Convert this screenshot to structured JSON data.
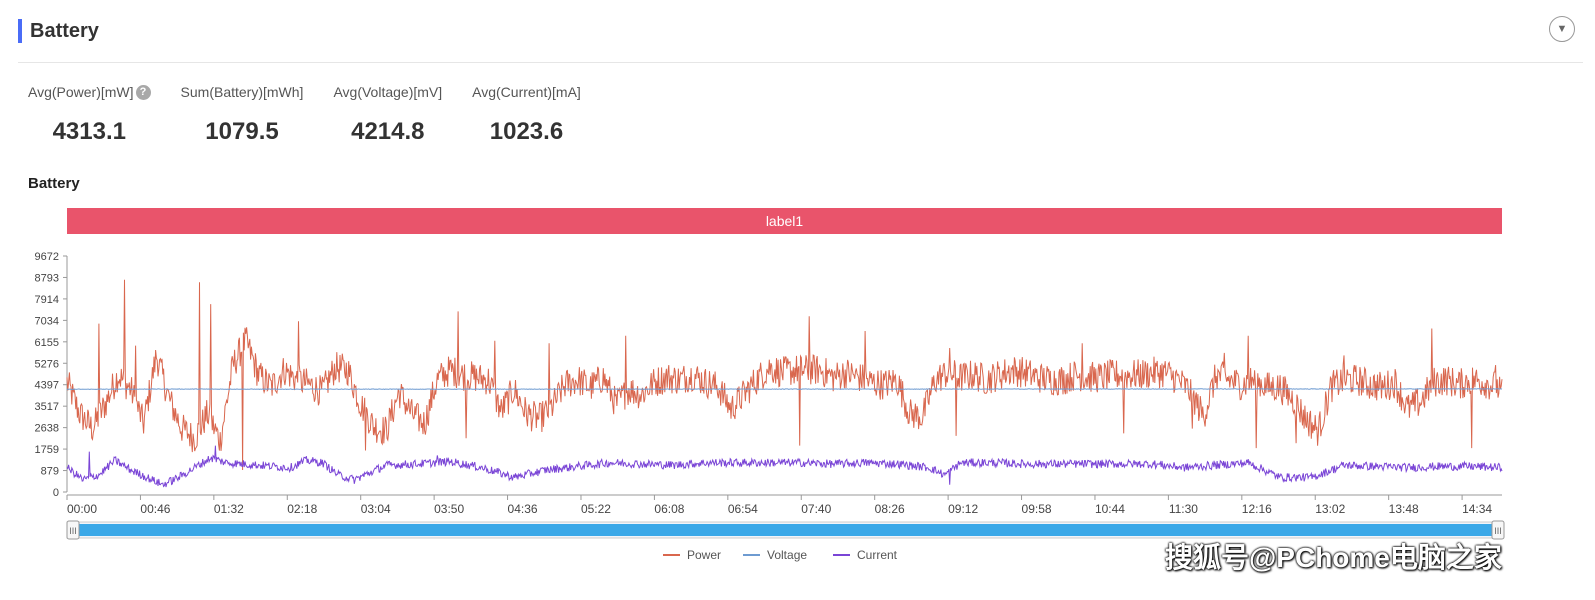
{
  "panel": {
    "title": "Battery",
    "collapse_icon": "chevron-down-icon"
  },
  "metrics": [
    {
      "label": "Avg(Power)[mW]",
      "value": "4313.1",
      "has_help": true
    },
    {
      "label": "Sum(Battery)[mWh]",
      "value": "1079.5",
      "has_help": false
    },
    {
      "label": "Avg(Voltage)[mV]",
      "value": "4214.8",
      "has_help": false
    },
    {
      "label": "Avg(Current)[mA]",
      "value": "1023.6",
      "has_help": false
    }
  ],
  "chart_data": {
    "type": "line",
    "title": "Battery",
    "band_label": "label1",
    "band_color": "#e9546b",
    "y_ticks": [
      0,
      879,
      1759,
      2638,
      3517,
      4397,
      5276,
      6155,
      7034,
      7914,
      8793,
      9672
    ],
    "ylim": [
      0,
      9672
    ],
    "x_ticks": [
      "00:00",
      "00:46",
      "01:32",
      "02:18",
      "03:04",
      "03:50",
      "04:36",
      "05:22",
      "06:08",
      "06:54",
      "07:40",
      "08:26",
      "09:12",
      "09:58",
      "10:44",
      "11:30",
      "12:16",
      "13:02",
      "13:48",
      "14:34"
    ],
    "x_tick_minutes": [
      0,
      46,
      92,
      138,
      184,
      230,
      276,
      322,
      368,
      414,
      460,
      506,
      552,
      598,
      644,
      690,
      736,
      782,
      828,
      874
    ],
    "xlim_minutes": [
      0,
      899
    ],
    "grid": false,
    "legend_position": "bottom-center",
    "slider": {
      "start": 0,
      "end": 1
    },
    "series": [
      {
        "name": "Power",
        "color": "#d9674e",
        "anchors_min": [
          0,
          8,
          16,
          24,
          32,
          40,
          48,
          56,
          64,
          72,
          80,
          88,
          96,
          104,
          112,
          120,
          128,
          136,
          144,
          152,
          160,
          168,
          176,
          184,
          192,
          200,
          208,
          216,
          224,
          232,
          240,
          248,
          256,
          264,
          272,
          280,
          288,
          296,
          304,
          312,
          320,
          328,
          336,
          344,
          352,
          360,
          368,
          376,
          384,
          392,
          400,
          408,
          416,
          424,
          432,
          440,
          448,
          456,
          464,
          472,
          480,
          488,
          496,
          504,
          512,
          520,
          528,
          536,
          544,
          552,
          560,
          568,
          576,
          584,
          592,
          600,
          608,
          616,
          624,
          632,
          640,
          648,
          656,
          664,
          672,
          680,
          688,
          696,
          704,
          712,
          720,
          728,
          736,
          744,
          752,
          760,
          768,
          776,
          784,
          792,
          800,
          808,
          816,
          824,
          832,
          840,
          848,
          856,
          864,
          872,
          880,
          888,
          896,
          899
        ],
        "anchors_val": [
          4500,
          3200,
          2600,
          3600,
          4800,
          4200,
          2800,
          5600,
          3800,
          2600,
          2200,
          3200,
          2100,
          5200,
          6200,
          4800,
          4300,
          5000,
          4600,
          4400,
          4100,
          5100,
          5000,
          3600,
          2700,
          2500,
          4100,
          3200,
          2800,
          4600,
          5000,
          4800,
          4700,
          4600,
          3300,
          4200,
          3200,
          3000,
          3500,
          4400,
          4600,
          4300,
          4700,
          3600,
          4200,
          4000,
          4500,
          4700,
          4600,
          4800,
          4500,
          4300,
          3400,
          4000,
          4600,
          5100,
          4900,
          5000,
          5000,
          5000,
          4700,
          4900,
          4700,
          4500,
          4400,
          4600,
          3200,
          3100,
          4600,
          4900,
          4700,
          4800,
          4600,
          4800,
          5000,
          4900,
          4700,
          4600,
          4600,
          4800,
          4700,
          4700,
          4800,
          4800,
          4800,
          4900,
          4900,
          4600,
          4100,
          3100,
          4800,
          4600,
          4400,
          4600,
          4300,
          4300,
          3800,
          3000,
          2500,
          4300,
          4600,
          4600,
          4400,
          4300,
          4500,
          3400,
          3700,
          4500,
          4600,
          4400,
          4600,
          4500,
          4300,
          4000
        ],
        "volatility": 650,
        "spikes": [
          [
            20,
            6900
          ],
          [
            36,
            8700
          ],
          [
            43,
            6000
          ],
          [
            83,
            8600
          ],
          [
            90,
            7700
          ],
          [
            145,
            7000
          ],
          [
            245,
            7400
          ],
          [
            268,
            6200
          ],
          [
            302,
            6100
          ],
          [
            350,
            6400
          ],
          [
            465,
            7200
          ],
          [
            500,
            6600
          ],
          [
            553,
            5900
          ],
          [
            636,
            6100
          ],
          [
            725,
            5700
          ],
          [
            740,
            6400
          ],
          [
            800,
            5600
          ],
          [
            855,
            6700
          ],
          [
            895,
            5200
          ],
          [
            110,
            900
          ],
          [
            187,
            1700
          ],
          [
            250,
            2200
          ],
          [
            459,
            1900
          ],
          [
            557,
            2300
          ],
          [
            662,
            2400
          ],
          [
            705,
            2600
          ],
          [
            745,
            1800
          ],
          [
            770,
            2000
          ],
          [
            880,
            1800
          ]
        ]
      },
      {
        "name": "Voltage",
        "color": "#6e9bd1",
        "anchors_min": [
          0,
          60,
          120,
          300,
          600,
          899
        ],
        "anchors_val": [
          4210,
          4220,
          4215,
          4215,
          4220,
          4225
        ],
        "volatility": 10,
        "spikes": []
      },
      {
        "name": "Current",
        "color": "#7a45d6",
        "anchors_min": [
          0,
          10,
          20,
          30,
          40,
          50,
          60,
          70,
          80,
          90,
          100,
          120,
          140,
          150,
          160,
          170,
          180,
          200,
          220,
          240,
          260,
          280,
          300,
          320,
          340,
          360,
          380,
          400,
          420,
          440,
          460,
          480,
          500,
          520,
          540,
          550,
          560,
          580,
          600,
          640,
          680,
          700,
          720,
          740,
          760,
          780,
          800,
          820,
          840,
          860,
          880,
          899
        ],
        "anchors_val": [
          1000,
          500,
          700,
          1300,
          900,
          600,
          300,
          600,
          1000,
          1400,
          1200,
          1100,
          1000,
          1300,
          1200,
          700,
          500,
          1100,
          1150,
          1250,
          1000,
          600,
          900,
          1050,
          1200,
          1150,
          1100,
          1200,
          1200,
          1200,
          1200,
          1150,
          1200,
          1150,
          1000,
          700,
          1200,
          1200,
          1150,
          1150,
          1150,
          1000,
          1100,
          1200,
          600,
          600,
          1100,
          1050,
          1000,
          1050,
          1050,
          1000
        ],
        "volatility": 170,
        "spikes": [
          [
            14,
            1650
          ],
          [
            93,
            1900
          ],
          [
            232,
            1500
          ],
          [
            553,
            300
          ]
        ]
      }
    ]
  },
  "watermark": "搜狐号@PChome电脑之家"
}
